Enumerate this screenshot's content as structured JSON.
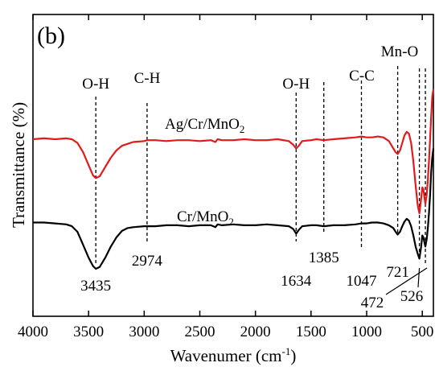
{
  "chart_data": {
    "type": "line",
    "panel_label": "(b)",
    "xlabel": "Wavenumer (cm",
    "xlabel_sup": "-1",
    "xlabel_tail": ")",
    "ylabel": "Transmittance (%)",
    "xlim": [
      4000,
      400
    ],
    "x_reversed": true,
    "y_ticks_shown": false,
    "grid": false,
    "x_ticks": [
      4000,
      3500,
      3000,
      2500,
      2000,
      1500,
      1000,
      500
    ],
    "x_tick_labels": [
      "4000",
      "3500",
      "3000",
      "2500",
      "2000",
      "1500",
      "1000",
      "500"
    ],
    "series": [
      {
        "name": "Ag/Cr/MnO2",
        "label_main": "Ag/Cr/MnO",
        "label_sub": "2",
        "color": "#e31a1c",
        "x": [
          4000,
          3900,
          3800,
          3700,
          3650,
          3600,
          3550,
          3500,
          3460,
          3435,
          3400,
          3350,
          3300,
          3250,
          3200,
          3150,
          3100,
          3000,
          2974,
          2900,
          2800,
          2700,
          2600,
          2500,
          2400,
          2360,
          2340,
          2300,
          2200,
          2100,
          2000,
          1900,
          1800,
          1700,
          1660,
          1634,
          1610,
          1580,
          1500,
          1450,
          1385,
          1300,
          1200,
          1100,
          1047,
          1000,
          950,
          900,
          850,
          800,
          760,
          740,
          721,
          700,
          680,
          660,
          640,
          620,
          600,
          580,
          560,
          540,
          526,
          510,
          500,
          490,
          472,
          460,
          450,
          440,
          430,
          420,
          410,
          400
        ],
        "y": [
          70,
          70.5,
          70,
          70.5,
          70,
          68,
          63,
          56,
          50.5,
          49,
          50,
          55,
          60,
          64,
          66.5,
          67.5,
          68.5,
          69,
          69.5,
          69.5,
          69,
          69.5,
          69.5,
          69,
          69.5,
          68.5,
          70,
          69.5,
          69.5,
          70,
          69.5,
          69.5,
          70,
          69,
          67,
          65,
          66.5,
          69,
          69.5,
          70,
          69.5,
          70,
          70.5,
          71,
          71.5,
          71,
          71,
          71.5,
          71,
          69,
          65,
          63,
          62,
          64,
          68,
          72,
          74,
          73,
          68,
          58,
          45,
          34,
          30,
          38,
          44,
          43,
          35,
          40,
          48,
          58,
          70,
          82,
          93,
          97
        ]
      },
      {
        "name": "Cr/MnO2",
        "label_main": "Cr/MnO",
        "label_sub": "2",
        "color": "#000000",
        "x": [
          4000,
          3900,
          3800,
          3700,
          3650,
          3600,
          3550,
          3500,
          3460,
          3435,
          3400,
          3350,
          3300,
          3250,
          3200,
          3150,
          3100,
          3000,
          2974,
          2900,
          2800,
          2700,
          2600,
          2500,
          2400,
          2360,
          2340,
          2300,
          2200,
          2100,
          2000,
          1900,
          1800,
          1700,
          1660,
          1634,
          1610,
          1580,
          1500,
          1450,
          1385,
          1300,
          1200,
          1100,
          1047,
          1000,
          950,
          900,
          850,
          800,
          760,
          740,
          721,
          700,
          680,
          660,
          640,
          620,
          600,
          580,
          560,
          540,
          526,
          510,
          500,
          490,
          472,
          460,
          450,
          440,
          430,
          420,
          410,
          400
        ],
        "y": [
          25,
          25,
          24.5,
          24,
          23,
          20,
          13,
          6,
          1.5,
          0,
          1,
          6,
          12,
          17,
          20.5,
          22,
          22.5,
          23,
          23,
          23,
          23.5,
          23.5,
          23,
          23.5,
          23.5,
          22.5,
          24,
          23.5,
          24,
          23.5,
          23.5,
          24,
          23.5,
          23,
          21.5,
          19,
          21,
          23,
          23.5,
          23.5,
          23,
          23.5,
          23.5,
          24,
          24.5,
          24.5,
          25,
          25,
          24.5,
          23.5,
          22,
          20,
          18.5,
          20,
          23,
          25.5,
          27,
          26,
          23,
          18,
          12,
          8,
          5.5,
          12,
          18,
          17,
          12,
          16,
          22,
          30,
          40,
          52,
          60,
          65
        ]
      }
    ],
    "annotations": {
      "group_labels": [
        {
          "text": "O-H",
          "x": 3435
        },
        {
          "text": "C-H",
          "x": 2974
        },
        {
          "text": "O-H",
          "x": 1634
        },
        {
          "text": "C-C",
          "x": 1047
        },
        {
          "text": "Mn-O",
          "x": 600
        }
      ],
      "peak_labels": [
        {
          "text": "3435",
          "x": 3435
        },
        {
          "text": "2974",
          "x": 2974
        },
        {
          "text": "1634",
          "x": 1634
        },
        {
          "text": "1385",
          "x": 1385
        },
        {
          "text": "1047",
          "x": 1047
        },
        {
          "text": "721",
          "x": 721
        },
        {
          "text": "472",
          "x": 472
        },
        {
          "text": "526",
          "x": 526
        }
      ],
      "dashed_lines_at": [
        3435,
        2974,
        1634,
        1385,
        1047,
        721,
        526,
        472
      ]
    }
  }
}
